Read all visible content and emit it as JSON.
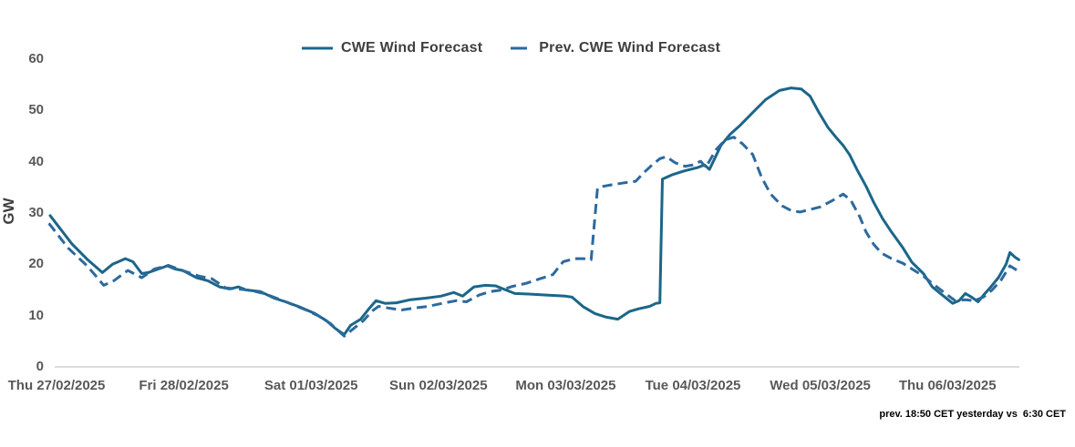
{
  "footer": {
    "note": "prev. 18:50 CET yesterday vs  6:30 CET"
  },
  "chart_data": {
    "type": "line",
    "title": "",
    "ylabel": "GW",
    "xlabel": "",
    "ylim": [
      0,
      60
    ],
    "yticks": [
      0,
      10,
      20,
      30,
      40,
      50,
      60
    ],
    "grid": "baseline-only",
    "gridline_color": "#c6c6c6",
    "legend_position": "top-center",
    "categories": [
      "Thu 27/02/2025",
      "Fri 28/02/2025",
      "Sat 01/03/2025",
      "Sun 02/03/2025",
      "Mon 03/03/2025",
      "Tue 04/03/2025",
      "Wed 05/03/2025",
      "Thu 06/03/2025"
    ],
    "x_unit": "days-from-Thu-27/02/2025",
    "series": [
      {
        "name": "CWE Wind Forecast",
        "style": "solid",
        "color": "#1b6689",
        "points": [
          [
            -0.05,
            29.5
          ],
          [
            0.12,
            24
          ],
          [
            0.24,
            21
          ],
          [
            0.36,
            18.4
          ],
          [
            0.44,
            20
          ],
          [
            0.54,
            21.1
          ],
          [
            0.6,
            20.5
          ],
          [
            0.67,
            18.2
          ],
          [
            0.72,
            18.4
          ],
          [
            0.79,
            19
          ],
          [
            0.87,
            19.7
          ],
          [
            0.93,
            19.1
          ],
          [
            0.99,
            18.8
          ],
          [
            1.1,
            17.4
          ],
          [
            1.19,
            16.8
          ],
          [
            1.28,
            15.6
          ],
          [
            1.36,
            15.2
          ],
          [
            1.43,
            15.6
          ],
          [
            1.49,
            15
          ],
          [
            1.6,
            14.7
          ],
          [
            1.71,
            13.4
          ],
          [
            1.81,
            12.6
          ],
          [
            1.92,
            11.6
          ],
          [
            2.03,
            10.4
          ],
          [
            2.12,
            9
          ],
          [
            2.19,
            7.5
          ],
          [
            2.26,
            6.3
          ],
          [
            2.31,
            8.1
          ],
          [
            2.39,
            9.3
          ],
          [
            2.46,
            11.5
          ],
          [
            2.51,
            12.9
          ],
          [
            2.58,
            12.4
          ],
          [
            2.67,
            12.5
          ],
          [
            2.78,
            13.1
          ],
          [
            2.9,
            13.4
          ],
          [
            3.02,
            13.8
          ],
          [
            3.12,
            14.5
          ],
          [
            3.19,
            13.8
          ],
          [
            3.28,
            15.6
          ],
          [
            3.37,
            15.9
          ],
          [
            3.45,
            15.8
          ],
          [
            3.53,
            15
          ],
          [
            3.6,
            14.3
          ],
          [
            3.71,
            14.2
          ],
          [
            3.85,
            14
          ],
          [
            4,
            13.8
          ],
          [
            4.05,
            13.6
          ],
          [
            4.14,
            11.7
          ],
          [
            4.23,
            10.4
          ],
          [
            4.32,
            9.7
          ],
          [
            4.41,
            9.3
          ],
          [
            4.5,
            10.8
          ],
          [
            4.57,
            11.3
          ],
          [
            4.66,
            11.8
          ],
          [
            4.71,
            12.4
          ],
          [
            4.74,
            12.5
          ],
          [
            4.76,
            36.6
          ],
          [
            4.84,
            37.5
          ],
          [
            4.93,
            38.2
          ],
          [
            5.04,
            38.9
          ],
          [
            5.09,
            39.4
          ],
          [
            5.13,
            38.5
          ],
          [
            5.22,
            43.2
          ],
          [
            5.29,
            45.3
          ],
          [
            5.37,
            47.1
          ],
          [
            5.47,
            49.6
          ],
          [
            5.57,
            52.1
          ],
          [
            5.68,
            53.9
          ],
          [
            5.77,
            54.4
          ],
          [
            5.85,
            54.2
          ],
          [
            5.92,
            52.8
          ],
          [
            5.99,
            49.6
          ],
          [
            6.06,
            46.7
          ],
          [
            6.13,
            44.6
          ],
          [
            6.18,
            43.2
          ],
          [
            6.23,
            41.4
          ],
          [
            6.29,
            38.4
          ],
          [
            6.36,
            35.2
          ],
          [
            6.42,
            32.1
          ],
          [
            6.49,
            28.9
          ],
          [
            6.56,
            26.3
          ],
          [
            6.65,
            23.2
          ],
          [
            6.72,
            20.4
          ],
          [
            6.81,
            18.2
          ],
          [
            6.88,
            15.6
          ],
          [
            6.97,
            13.8
          ],
          [
            7.04,
            12.4
          ],
          [
            7.09,
            12.9
          ],
          [
            7.14,
            14.3
          ],
          [
            7.19,
            13.6
          ],
          [
            7.24,
            12.7
          ],
          [
            7.29,
            14.2
          ],
          [
            7.34,
            15.6
          ],
          [
            7.4,
            17.4
          ],
          [
            7.46,
            20
          ],
          [
            7.49,
            22.3
          ],
          [
            7.53,
            21.4
          ],
          [
            7.56,
            20.9
          ]
        ]
      },
      {
        "name": "Prev. CWE Wind Forecast",
        "style": "dashed",
        "color": "#2d699e",
        "dash_pattern": "11 6",
        "points": [
          [
            -0.06,
            28
          ],
          [
            0.09,
            23.2
          ],
          [
            0.24,
            19.7
          ],
          [
            0.31,
            17.7
          ],
          [
            0.37,
            15.9
          ],
          [
            0.45,
            16.8
          ],
          [
            0.56,
            18.8
          ],
          [
            0.67,
            17.4
          ],
          [
            0.77,
            19.1
          ],
          [
            0.88,
            19.8
          ],
          [
            0.99,
            18.8
          ],
          [
            1.12,
            17.7
          ],
          [
            1.22,
            17.2
          ],
          [
            1.33,
            15.4
          ],
          [
            1.43,
            15.2
          ],
          [
            1.53,
            14.9
          ],
          [
            1.63,
            14.3
          ],
          [
            1.74,
            13.3
          ],
          [
            1.85,
            12.2
          ],
          [
            1.96,
            11.1
          ],
          [
            2.06,
            9.9
          ],
          [
            2.15,
            8.5
          ],
          [
            2.22,
            6.9
          ],
          [
            2.26,
            6
          ],
          [
            2.34,
            7.6
          ],
          [
            2.41,
            9
          ],
          [
            2.48,
            10.9
          ],
          [
            2.53,
            11.8
          ],
          [
            2.6,
            11.5
          ],
          [
            2.71,
            11.1
          ],
          [
            2.82,
            11.5
          ],
          [
            2.92,
            11.8
          ],
          [
            3.03,
            12.4
          ],
          [
            3.14,
            12.9
          ],
          [
            3.22,
            12.7
          ],
          [
            3.32,
            14
          ],
          [
            3.41,
            14.7
          ],
          [
            3.5,
            15
          ],
          [
            3.58,
            15.7
          ],
          [
            3.69,
            16.3
          ],
          [
            3.8,
            17.2
          ],
          [
            3.9,
            18
          ],
          [
            3.98,
            20.5
          ],
          [
            4.07,
            21.1
          ],
          [
            4.14,
            21.1
          ],
          [
            4.2,
            20.9
          ],
          [
            4.25,
            34.8
          ],
          [
            4.27,
            35.1
          ],
          [
            4.36,
            35.5
          ],
          [
            4.46,
            35.9
          ],
          [
            4.55,
            36.2
          ],
          [
            4.61,
            37.8
          ],
          [
            4.68,
            39.4
          ],
          [
            4.74,
            40.6
          ],
          [
            4.79,
            41
          ],
          [
            4.86,
            39.8
          ],
          [
            4.94,
            39.1
          ],
          [
            5,
            39.4
          ],
          [
            5.06,
            40.1
          ],
          [
            5.1,
            38.9
          ],
          [
            5.18,
            42.3
          ],
          [
            5.25,
            44.2
          ],
          [
            5.32,
            44.8
          ],
          [
            5.39,
            43.5
          ],
          [
            5.47,
            41.4
          ],
          [
            5.54,
            36.9
          ],
          [
            5.61,
            33.7
          ],
          [
            5.7,
            31.4
          ],
          [
            5.77,
            30.5
          ],
          [
            5.84,
            30.2
          ],
          [
            5.92,
            30.7
          ],
          [
            6,
            31.2
          ],
          [
            6.1,
            32.5
          ],
          [
            6.18,
            33.7
          ],
          [
            6.24,
            32.5
          ],
          [
            6.31,
            29.3
          ],
          [
            6.36,
            26.3
          ],
          [
            6.42,
            23.9
          ],
          [
            6.48,
            22.2
          ],
          [
            6.56,
            21.1
          ],
          [
            6.65,
            20.2
          ],
          [
            6.72,
            19.1
          ],
          [
            6.81,
            17.7
          ],
          [
            6.9,
            15.9
          ],
          [
            6.99,
            14.2
          ],
          [
            7.06,
            12.9
          ],
          [
            7.14,
            13.1
          ],
          [
            7.21,
            12.9
          ],
          [
            7.28,
            13.6
          ],
          [
            7.35,
            15
          ],
          [
            7.42,
            16.9
          ],
          [
            7.49,
            19.7
          ],
          [
            7.56,
            18.6
          ]
        ]
      }
    ]
  }
}
